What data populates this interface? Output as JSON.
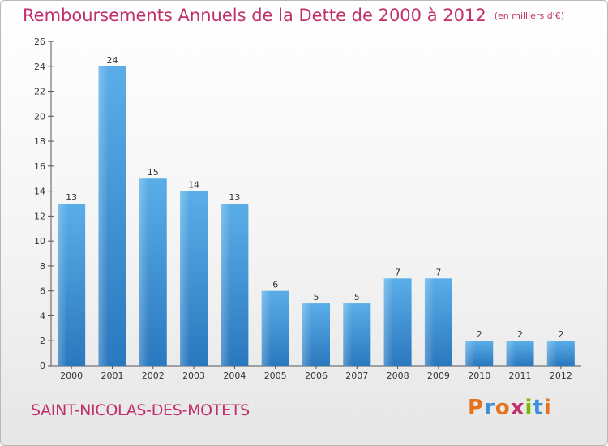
{
  "header": {
    "title": "Remboursements Annuels de la Dette de 2000 à 2012",
    "subtitle": "(en milliers d'€)"
  },
  "footer": {
    "place": "SAINT-NICOLAS-DES-MOTETS",
    "logo": "Proxiti",
    "logo_colors": [
      "#e8711c",
      "#3a8fd6",
      "#e8711c",
      "#c0306a",
      "#7ab800",
      "#3a8fd6",
      "#e8711c"
    ]
  },
  "chart_data": {
    "type": "bar",
    "categories": [
      "2000",
      "2001",
      "2002",
      "2003",
      "2004",
      "2005",
      "2006",
      "2007",
      "2008",
      "2009",
      "2010",
      "2011",
      "2012"
    ],
    "values": [
      13,
      24,
      15,
      14,
      13,
      6,
      5,
      5,
      7,
      7,
      2,
      2,
      2
    ],
    "ylim": [
      0,
      26
    ],
    "yticks": [
      0,
      2,
      4,
      6,
      8,
      10,
      12,
      14,
      16,
      18,
      20,
      22,
      24,
      26
    ],
    "grid": false,
    "bar_color": "#4a9fe0"
  }
}
